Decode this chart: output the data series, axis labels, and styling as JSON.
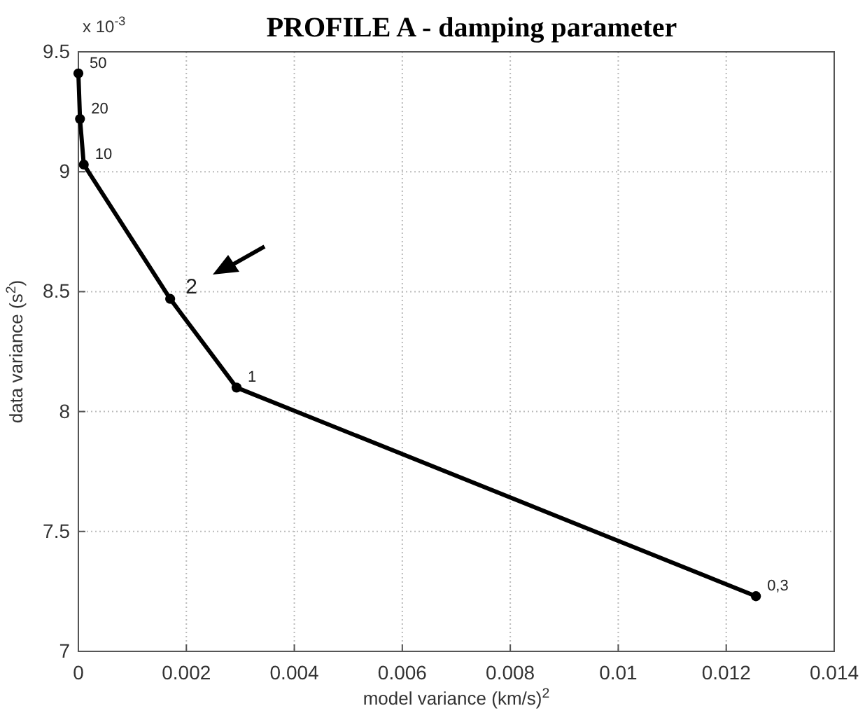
{
  "chart_data": {
    "type": "line",
    "title": "PROFILE A - damping parameter",
    "xlabel": "model variance (km/s)$^{2}$",
    "ylabel": "data variance (s$^{2}$)",
    "annotations": [
      "x 10$^{-3}$",
      {
        "text": "50",
        "x": 0,
        "y": 9.41
      },
      {
        "text": "20",
        "x": 3e-05,
        "y": 9.22
      },
      {
        "text": "10",
        "x": 0.0001,
        "y": 9.03
      },
      {
        "text": "2",
        "x": 0.0017,
        "y": 8.47
      },
      {
        "text": "1",
        "x": 0.00293,
        "y": 8.1
      },
      {
        "text": "0,3",
        "x": 0.01255,
        "y": 7.23
      }
    ],
    "x": [
      0,
      3e-05,
      0.0001,
      0.0017,
      0.00293,
      0.01255
    ],
    "series": [
      {
        "color": "#000000",
        "values": [
          9.41,
          9.22,
          9.03,
          8.47,
          8.1,
          7.23
        ]
      }
    ],
    "xlim": [
      0,
      0.014
    ],
    "xticks": [
      0,
      0.002,
      0.004,
      0.006,
      0.008,
      0.01,
      0.012,
      0.014
    ],
    "ylim": [
      7,
      9.5
    ],
    "yticks": [
      7,
      7.5,
      8,
      8.5,
      9,
      9.5
    ],
    "grid": true,
    "marker": "circle",
    "line_style": "solid"
  }
}
